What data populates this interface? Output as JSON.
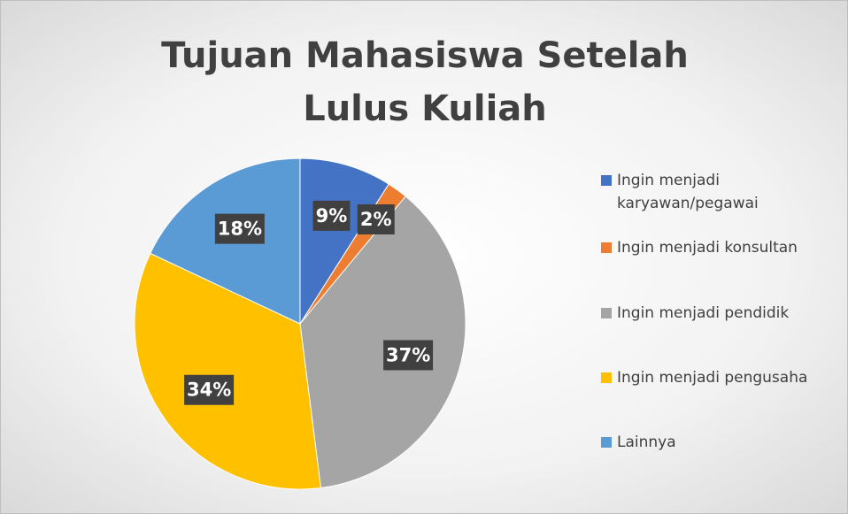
{
  "chart_data": {
    "type": "pie",
    "title": "Tujuan Mahasiswa Setelah Lulus Kuliah",
    "series": [
      {
        "name": "Ingin menjadi karyawan/pegawai",
        "color": "#4472c4"
      },
      {
        "name": "Ingin menjadi konsultan",
        "color": "#ed7d31"
      },
      {
        "name": "Ingin menjadi pendidik",
        "color": "#a5a5a5"
      },
      {
        "name": "Ingin menjadi pengusaha",
        "color": "#ffc000"
      },
      {
        "name": "Lainnya",
        "color": "#5b9bd5"
      }
    ],
    "values": [
      9,
      2,
      37,
      34,
      18
    ],
    "value_labels": [
      "9%",
      "2%",
      "37%",
      "34%",
      "18%"
    ],
    "legend": "right"
  }
}
